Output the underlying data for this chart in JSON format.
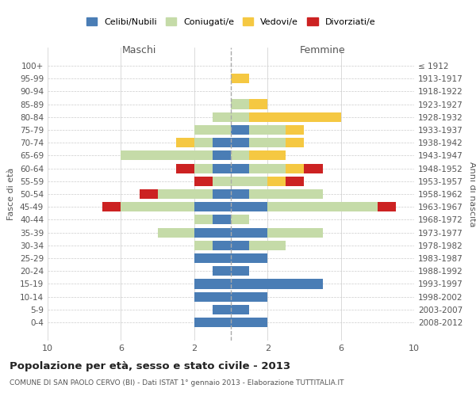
{
  "age_groups": [
    "0-4",
    "5-9",
    "10-14",
    "15-19",
    "20-24",
    "25-29",
    "30-34",
    "35-39",
    "40-44",
    "45-49",
    "50-54",
    "55-59",
    "60-64",
    "65-69",
    "70-74",
    "75-79",
    "80-84",
    "85-89",
    "90-94",
    "95-99",
    "100+"
  ],
  "birth_years": [
    "2008-2012",
    "2003-2007",
    "1998-2002",
    "1993-1997",
    "1988-1992",
    "1983-1987",
    "1978-1982",
    "1973-1977",
    "1968-1972",
    "1963-1967",
    "1958-1962",
    "1953-1957",
    "1948-1952",
    "1943-1947",
    "1938-1942",
    "1933-1937",
    "1928-1932",
    "1923-1927",
    "1918-1922",
    "1913-1917",
    "≤ 1912"
  ],
  "colors": {
    "celibi": "#4a7db5",
    "coniugati": "#c5dba8",
    "vedovi": "#f5c842",
    "divorziati": "#cc2222"
  },
  "males": {
    "celibi": [
      2,
      1,
      2,
      2,
      1,
      2,
      1,
      2,
      1,
      2,
      1,
      0,
      1,
      1,
      1,
      0,
      0,
      0,
      0,
      0,
      0
    ],
    "coniugati": [
      0,
      0,
      0,
      0,
      0,
      0,
      1,
      2,
      1,
      4,
      3,
      1,
      1,
      5,
      1,
      2,
      1,
      0,
      0,
      0,
      0
    ],
    "vedovi": [
      0,
      0,
      0,
      0,
      0,
      0,
      0,
      0,
      0,
      0,
      0,
      0,
      0,
      0,
      1,
      0,
      0,
      0,
      0,
      0,
      0
    ],
    "divorziati": [
      0,
      0,
      0,
      0,
      0,
      0,
      0,
      0,
      0,
      1,
      1,
      1,
      1,
      0,
      0,
      0,
      0,
      0,
      0,
      0,
      0
    ]
  },
  "females": {
    "nubili": [
      2,
      1,
      2,
      5,
      1,
      2,
      1,
      2,
      0,
      2,
      1,
      0,
      1,
      0,
      1,
      1,
      0,
      0,
      0,
      0,
      0
    ],
    "coniugate": [
      0,
      0,
      0,
      0,
      0,
      0,
      2,
      3,
      1,
      6,
      4,
      2,
      2,
      1,
      2,
      2,
      1,
      1,
      0,
      0,
      0
    ],
    "vedove": [
      0,
      0,
      0,
      0,
      0,
      0,
      0,
      0,
      0,
      0,
      0,
      1,
      1,
      2,
      1,
      1,
      5,
      1,
      0,
      1,
      0
    ],
    "divorziate": [
      0,
      0,
      0,
      0,
      0,
      0,
      0,
      0,
      0,
      1,
      0,
      1,
      1,
      0,
      0,
      0,
      0,
      0,
      0,
      0,
      0
    ]
  },
  "xlim": 10,
  "title": "Popolazione per età, sesso e stato civile - 2013",
  "subtitle": "COMUNE DI SAN PAOLO CERVO (BI) - Dati ISTAT 1° gennaio 2013 - Elaborazione TUTTITALIA.IT",
  "ylabel_left": "Fasce di età",
  "ylabel_right": "Anni di nascita",
  "xlabel_left": "Maschi",
  "xlabel_right": "Femmine",
  "legend_labels": [
    "Celibi/Nubili",
    "Coniugati/e",
    "Vedovi/e",
    "Divorziati/e"
  ],
  "background_color": "#ffffff",
  "grid_color": "#cccccc"
}
